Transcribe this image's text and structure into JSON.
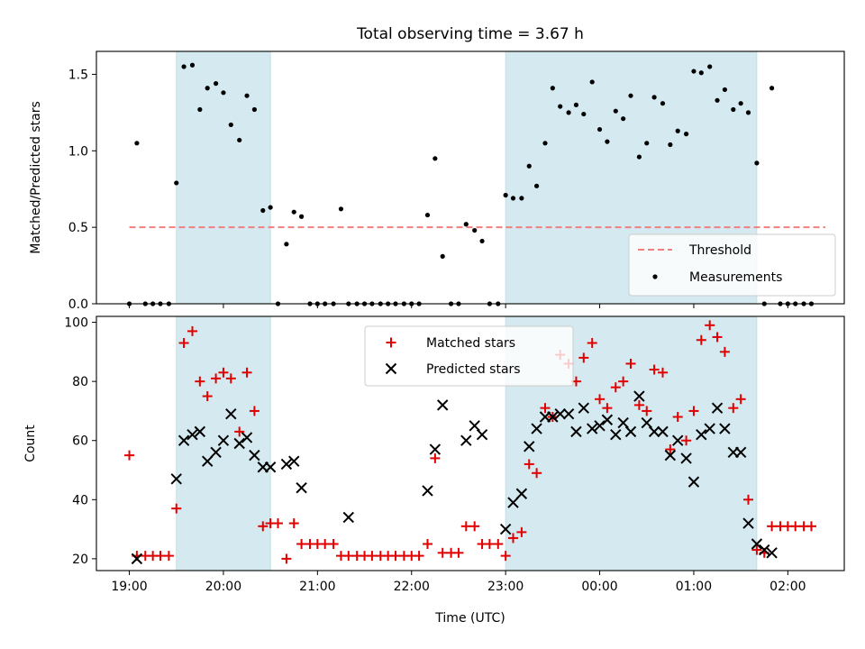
{
  "chart_data": [
    {
      "type": "scatter",
      "title": "Total observing time = 3.67 h",
      "xlabel": "",
      "ylabel": "Matched/Predicted stars",
      "xlim": [
        -0.35,
        7.6
      ],
      "ylim": [
        0,
        1.65
      ],
      "yticks": [
        0.0,
        0.5,
        1.0,
        1.5
      ],
      "ytick_labels": [
        "0.0",
        "0.5",
        "1.0",
        "1.5"
      ],
      "grid": false,
      "legend_position": "lower-right",
      "shaded_spans": [
        [
          0.5,
          1.5
        ],
        [
          4.0,
          6.67
        ]
      ],
      "shade_color": "#d4eaf0",
      "threshold": {
        "name": "Threshold",
        "value": 0.5,
        "x_range": [
          0,
          7.4
        ],
        "color": "#f08080"
      },
      "series": [
        {
          "name": "Measurements",
          "color": "#000000",
          "x": [
            0.0,
            0.08,
            0.17,
            0.25,
            0.33,
            0.42,
            0.5,
            0.58,
            0.67,
            0.75,
            0.83,
            0.92,
            1.0,
            1.08,
            1.17,
            1.25,
            1.33,
            1.42,
            1.5,
            1.58,
            1.67,
            1.75,
            1.83,
            1.92,
            2.0,
            2.08,
            2.17,
            2.25,
            2.33,
            2.42,
            2.5,
            2.58,
            2.67,
            2.75,
            2.83,
            2.92,
            3.0,
            3.08,
            3.17,
            3.25,
            3.33,
            3.42,
            3.5,
            3.58,
            3.67,
            3.75,
            3.83,
            3.92,
            4.0,
            4.08,
            4.17,
            4.25,
            4.33,
            4.42,
            4.5,
            4.58,
            4.67,
            4.75,
            4.83,
            4.92,
            5.0,
            5.08,
            5.17,
            5.25,
            5.33,
            5.42,
            5.5,
            5.58,
            5.67,
            5.75,
            5.83,
            5.92,
            6.0,
            6.08,
            6.17,
            6.25,
            6.33,
            6.42,
            6.5,
            6.58,
            6.67,
            6.75,
            6.83,
            6.92,
            7.0,
            7.08,
            7.17,
            7.25
          ],
          "y": [
            0.0,
            1.05,
            0.0,
            0.0,
            0.0,
            0.0,
            0.79,
            1.55,
            1.56,
            1.27,
            1.41,
            1.44,
            1.38,
            1.17,
            1.07,
            1.36,
            1.27,
            0.61,
            0.63,
            0.0,
            0.39,
            0.6,
            0.57,
            0.0,
            0.0,
            0.0,
            0.0,
            0.62,
            0.0,
            0.0,
            0.0,
            0.0,
            0.0,
            0.0,
            0.0,
            0.0,
            0.0,
            0.0,
            0.58,
            0.95,
            0.31,
            0.0,
            0.0,
            0.52,
            0.48,
            0.41,
            0.0,
            0.0,
            0.71,
            0.69,
            0.69,
            0.9,
            0.77,
            1.05,
            1.41,
            1.29,
            1.25,
            1.3,
            1.24,
            1.45,
            1.14,
            1.06,
            1.26,
            1.21,
            1.36,
            0.96,
            1.05,
            1.35,
            1.31,
            1.04,
            1.13,
            1.11,
            1.52,
            1.51,
            1.55,
            1.33,
            1.4,
            1.27,
            1.31,
            1.25,
            0.92,
            0.0,
            1.41,
            0.0,
            0.0,
            0.0,
            0.0,
            0.0
          ]
        }
      ]
    },
    {
      "type": "scatter",
      "title": "",
      "xlabel": "Time (UTC)",
      "ylabel": "Count",
      "xlim": [
        -0.35,
        7.6
      ],
      "ylim": [
        16,
        102
      ],
      "yticks": [
        20,
        40,
        60,
        80,
        100
      ],
      "ytick_labels": [
        "20",
        "40",
        "60",
        "80",
        "100"
      ],
      "xticks": [
        0,
        1,
        2,
        3,
        4,
        5,
        6,
        7
      ],
      "xtick_labels": [
        "19:00",
        "20:00",
        "21:00",
        "22:00",
        "23:00",
        "00:00",
        "01:00",
        "02:00"
      ],
      "grid": false,
      "legend_position": "top-center",
      "shaded_spans": [
        [
          0.5,
          1.5
        ],
        [
          4.0,
          6.67
        ]
      ],
      "shade_color": "#d4eaf0",
      "series": [
        {
          "name": "Matched stars",
          "marker": "plus",
          "color": "#e00000",
          "x": [
            0.0,
            0.08,
            0.17,
            0.25,
            0.33,
            0.42,
            0.5,
            0.58,
            0.67,
            0.75,
            0.83,
            0.92,
            1.0,
            1.08,
            1.17,
            1.25,
            1.33,
            1.42,
            1.5,
            1.58,
            1.67,
            1.75,
            1.83,
            1.92,
            2.0,
            2.08,
            2.17,
            2.25,
            2.33,
            2.42,
            2.5,
            2.58,
            2.67,
            2.75,
            2.83,
            2.92,
            3.0,
            3.08,
            3.17,
            3.25,
            3.33,
            3.42,
            3.5,
            3.58,
            3.67,
            3.75,
            3.83,
            3.92,
            4.0,
            4.08,
            4.17,
            4.25,
            4.33,
            4.42,
            4.5,
            4.58,
            4.67,
            4.75,
            4.83,
            4.92,
            5.0,
            5.08,
            5.17,
            5.25,
            5.33,
            5.42,
            5.5,
            5.58,
            5.67,
            5.75,
            5.83,
            5.92,
            6.0,
            6.08,
            6.17,
            6.25,
            6.33,
            6.42,
            6.5,
            6.58,
            6.67,
            6.75,
            6.83,
            6.92,
            7.0,
            7.08,
            7.17,
            7.25
          ],
          "y": [
            55,
            21,
            21,
            21,
            21,
            21,
            37,
            93,
            97,
            80,
            75,
            81,
            83,
            81,
            63,
            83,
            70,
            31,
            32,
            32,
            20,
            32,
            25,
            25,
            25,
            25,
            25,
            21,
            21,
            21,
            21,
            21,
            21,
            21,
            21,
            21,
            21,
            21,
            25,
            54,
            22,
            22,
            22,
            31,
            31,
            25,
            25,
            25,
            21,
            27,
            29,
            52,
            49,
            71,
            68,
            89,
            86,
            80,
            88,
            93,
            74,
            71,
            78,
            80,
            86,
            72,
            70,
            84,
            83,
            57,
            68,
            60,
            70,
            94,
            99,
            95,
            90,
            71,
            74,
            40,
            23,
            22,
            31,
            31,
            31,
            31,
            31,
            31
          ]
        },
        {
          "name": "Predicted stars",
          "marker": "x",
          "color": "#000000",
          "x": [
            0.08,
            0.5,
            0.58,
            0.67,
            0.75,
            0.83,
            0.92,
            1.0,
            1.08,
            1.17,
            1.25,
            1.33,
            1.42,
            1.5,
            1.67,
            1.75,
            1.83,
            2.33,
            3.17,
            3.25,
            3.33,
            3.58,
            3.67,
            3.75,
            4.0,
            4.08,
            4.17,
            4.25,
            4.33,
            4.42,
            4.5,
            4.58,
            4.67,
            4.75,
            4.83,
            4.92,
            5.0,
            5.08,
            5.17,
            5.25,
            5.33,
            5.42,
            5.5,
            5.58,
            5.67,
            5.75,
            5.83,
            5.92,
            6.0,
            6.08,
            6.17,
            6.25,
            6.33,
            6.42,
            6.5,
            6.58,
            6.67,
            6.75,
            6.83
          ],
          "y": [
            20,
            47,
            60,
            62,
            63,
            53,
            56,
            60,
            69,
            59,
            61,
            55,
            51,
            51,
            52,
            53,
            44,
            34,
            43,
            57,
            72,
            60,
            65,
            62,
            30,
            39,
            42,
            58,
            64,
            68,
            68,
            69,
            69,
            63,
            71,
            64,
            65,
            67,
            62,
            66,
            63,
            75,
            66,
            63,
            63,
            55,
            60,
            54,
            46,
            62,
            64,
            71,
            64,
            56,
            56,
            32,
            25,
            23,
            22
          ]
        }
      ]
    }
  ]
}
